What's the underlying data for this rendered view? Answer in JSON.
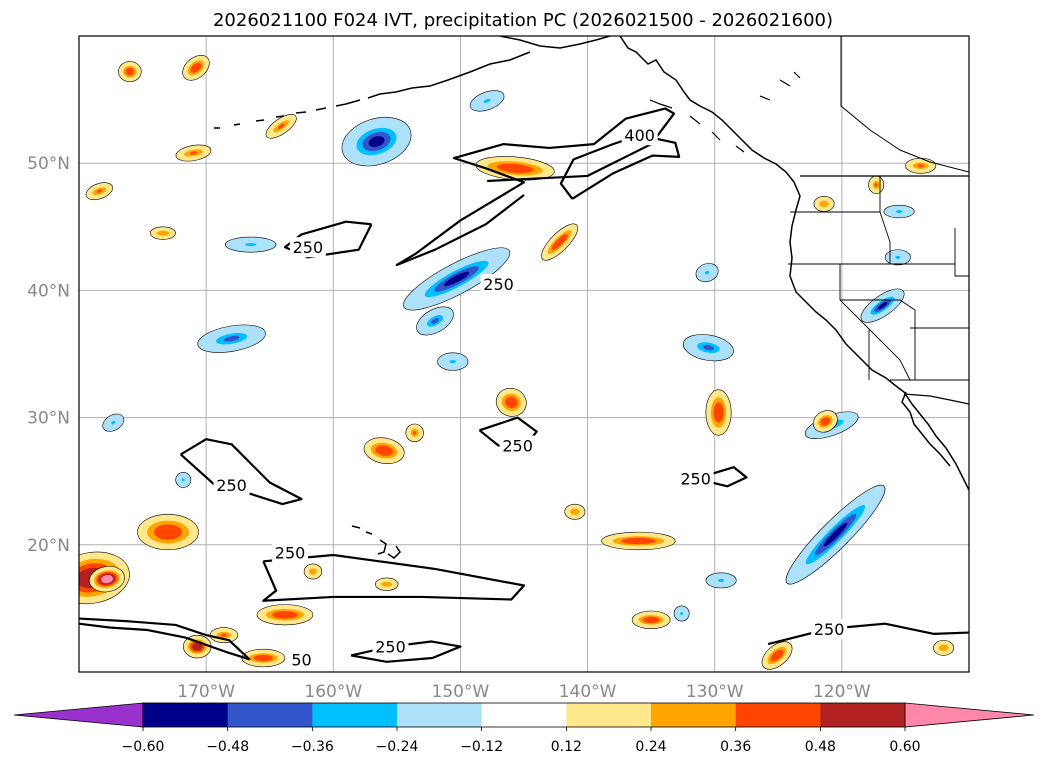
{
  "chart_data": {
    "type": "heatmap",
    "title": "2026021100 F024 IVT, precipitation PC (2026021500 - 2026021600)",
    "xlabel": "",
    "ylabel": "",
    "map": {
      "lon_range": [
        -180,
        -110
      ],
      "lat_range": [
        10,
        60
      ],
      "gridlines": true
    },
    "x_ticks": [
      {
        "value": -170,
        "label": "170°W"
      },
      {
        "value": -160,
        "label": "160°W"
      },
      {
        "value": -150,
        "label": "150°W"
      },
      {
        "value": -140,
        "label": "140°W"
      },
      {
        "value": -130,
        "label": "130°W"
      },
      {
        "value": -120,
        "label": "120°W"
      }
    ],
    "y_ticks": [
      {
        "value": 50,
        "label": "50°N"
      },
      {
        "value": 40,
        "label": "40°N"
      },
      {
        "value": 30,
        "label": "30°N"
      },
      {
        "value": 20,
        "label": "20°N"
      }
    ],
    "contour_labels": [
      {
        "text": "400",
        "lon": -135.9,
        "lat": 52.2
      },
      {
        "text": "250",
        "lon": -162.0,
        "lat": 43.4
      },
      {
        "text": "250",
        "lon": -147.0,
        "lat": 40.5
      },
      {
        "text": "250",
        "lon": -168.0,
        "lat": 24.7
      },
      {
        "text": "250",
        "lon": -145.5,
        "lat": 27.8
      },
      {
        "text": "250",
        "lon": -131.5,
        "lat": 25.2
      },
      {
        "text": "250",
        "lon": -163.4,
        "lat": 19.4
      },
      {
        "text": "250",
        "lon": -155.5,
        "lat": 12.0
      },
      {
        "text": "250",
        "lon": -121.0,
        "lat": 13.4
      },
      {
        "text": "50",
        "lon": -162.5,
        "lat": 11.0
      }
    ],
    "colorbar": {
      "levels": [
        -0.6,
        -0.48,
        -0.36,
        -0.24,
        -0.12,
        0.12,
        0.24,
        0.36,
        0.48,
        0.6
      ],
      "labels": [
        "−0.60",
        "−0.48",
        "−0.36",
        "−0.24",
        "−0.12",
        "0.12",
        "0.24",
        "0.36",
        "0.48",
        "0.60"
      ],
      "under_color": "#9932CC",
      "over_color": "#FF88AA",
      "colors": [
        "#00008B",
        "#3355CC",
        "#00BFFF",
        "#ADE1FA",
        "#FFFFFF",
        "#FFE88C",
        "#FFA500",
        "#FF4500",
        "#B22222"
      ],
      "extend": "both"
    },
    "precip_blobs": [
      {
        "lon": -156.6,
        "lat": 51.7,
        "rx": 2.6,
        "ry": 1.6,
        "rot": -18,
        "value": -0.55
      },
      {
        "lon": -150.3,
        "lat": 40.9,
        "rx": 4.5,
        "ry": 1.0,
        "rot": -28,
        "value": -0.55
      },
      {
        "lon": -152.0,
        "lat": 37.6,
        "rx": 1.4,
        "ry": 0.7,
        "rot": -30,
        "value": -0.4
      },
      {
        "lon": -168.0,
        "lat": 36.2,
        "rx": 2.5,
        "ry": 0.8,
        "rot": -10,
        "value": -0.4
      },
      {
        "lon": -130.5,
        "lat": 35.5,
        "rx": 1.8,
        "ry": 0.8,
        "rot": 10,
        "value": -0.4
      },
      {
        "lon": -120.8,
        "lat": 29.4,
        "rx": 2.0,
        "ry": 0.6,
        "rot": -20,
        "value": -0.4
      },
      {
        "lon": -120.5,
        "lat": 20.8,
        "rx": 5.2,
        "ry": 0.9,
        "rot": -45,
        "value": -0.55
      },
      {
        "lon": -147.9,
        "lat": 54.9,
        "rx": 1.2,
        "ry": 0.5,
        "rot": -20,
        "value": -0.3
      },
      {
        "lon": -166.5,
        "lat": 43.6,
        "rx": 1.8,
        "ry": 0.4,
        "rot": 0,
        "value": -0.3
      },
      {
        "lon": -150.6,
        "lat": 34.4,
        "rx": 1.0,
        "ry": 0.5,
        "rot": 0,
        "value": -0.3
      },
      {
        "lon": -177.3,
        "lat": 29.6,
        "rx": 0.7,
        "ry": 0.4,
        "rot": -30,
        "value": -0.3
      },
      {
        "lon": -171.8,
        "lat": 25.1,
        "rx": 0.4,
        "ry": 0.4,
        "rot": 0,
        "value": -0.3
      },
      {
        "lon": -129.5,
        "lat": 17.2,
        "rx": 1.0,
        "ry": 0.4,
        "rot": 0,
        "value": -0.3
      },
      {
        "lon": -132.6,
        "lat": 14.6,
        "rx": 0.4,
        "ry": 0.4,
        "rot": 0,
        "value": -0.3
      },
      {
        "lon": -130.6,
        "lat": 41.4,
        "rx": 0.7,
        "ry": 0.5,
        "rot": -20,
        "value": -0.3
      },
      {
        "lon": -115.6,
        "lat": 42.6,
        "rx": 0.8,
        "ry": 0.4,
        "rot": 0,
        "value": -0.3
      },
      {
        "lon": -115.5,
        "lat": 46.2,
        "rx": 1.0,
        "ry": 0.3,
        "rot": 0,
        "value": -0.3
      },
      {
        "lon": -116.8,
        "lat": 38.8,
        "rx": 1.8,
        "ry": 0.6,
        "rot": -35,
        "value": -0.5
      },
      {
        "lon": -145.7,
        "lat": 49.6,
        "rx": 2.9,
        "ry": 0.7,
        "rot": 5,
        "value": 0.42
      },
      {
        "lon": -142.2,
        "lat": 43.8,
        "rx": 1.7,
        "ry": 0.5,
        "rot": -45,
        "value": 0.4
      },
      {
        "lon": -170.8,
        "lat": 57.5,
        "rx": 1.0,
        "ry": 0.6,
        "rot": -40,
        "value": 0.4
      },
      {
        "lon": -176.0,
        "lat": 57.2,
        "rx": 0.7,
        "ry": 0.6,
        "rot": 0,
        "value": 0.38
      },
      {
        "lon": -171.0,
        "lat": 50.8,
        "rx": 1.2,
        "ry": 0.4,
        "rot": -10,
        "value": 0.36
      },
      {
        "lon": -178.4,
        "lat": 47.8,
        "rx": 0.9,
        "ry": 0.4,
        "rot": -20,
        "value": 0.36
      },
      {
        "lon": -164.1,
        "lat": 52.9,
        "rx": 1.2,
        "ry": 0.4,
        "rot": -35,
        "value": 0.36
      },
      {
        "lon": -173.4,
        "lat": 44.5,
        "rx": 0.8,
        "ry": 0.3,
        "rot": 0,
        "value": 0.3
      },
      {
        "lon": -156.0,
        "lat": 27.4,
        "rx": 1.4,
        "ry": 0.8,
        "rot": 10,
        "value": 0.45
      },
      {
        "lon": -153.6,
        "lat": 28.8,
        "rx": 0.5,
        "ry": 0.5,
        "rot": 0,
        "value": 0.36
      },
      {
        "lon": -146.0,
        "lat": 31.2,
        "rx": 1.0,
        "ry": 0.9,
        "rot": 20,
        "value": 0.38
      },
      {
        "lon": -129.7,
        "lat": 30.4,
        "rx": 0.8,
        "ry": 1.6,
        "rot": 0,
        "value": 0.4
      },
      {
        "lon": -121.3,
        "lat": 29.7,
        "rx": 0.8,
        "ry": 0.6,
        "rot": -30,
        "value": 0.4
      },
      {
        "lon": -173.0,
        "lat": 21.0,
        "rx": 2.2,
        "ry": 1.2,
        "rot": 0,
        "value": 0.38
      },
      {
        "lon": -179.0,
        "lat": 17.4,
        "rx": 2.8,
        "ry": 1.8,
        "rot": -10,
        "value": 0.55
      },
      {
        "lon": -177.8,
        "lat": 17.3,
        "rx": 1.2,
        "ry": 0.8,
        "rot": -10,
        "value": 0.7
      },
      {
        "lon": -163.8,
        "lat": 14.5,
        "rx": 2.0,
        "ry": 0.6,
        "rot": 0,
        "value": 0.38
      },
      {
        "lon": -165.5,
        "lat": 11.1,
        "rx": 1.5,
        "ry": 0.5,
        "rot": 0,
        "value": 0.4
      },
      {
        "lon": -170.7,
        "lat": 12.0,
        "rx": 0.9,
        "ry": 0.7,
        "rot": 0,
        "value": 0.52
      },
      {
        "lon": -168.6,
        "lat": 12.9,
        "rx": 0.9,
        "ry": 0.4,
        "rot": 0,
        "value": 0.36
      },
      {
        "lon": -136.0,
        "lat": 20.3,
        "rx": 2.7,
        "ry": 0.5,
        "rot": 0,
        "value": 0.38
      },
      {
        "lon": -135.0,
        "lat": 14.1,
        "rx": 1.3,
        "ry": 0.5,
        "rot": 0,
        "value": 0.38
      },
      {
        "lon": -125.1,
        "lat": 11.3,
        "rx": 1.2,
        "ry": 0.6,
        "rot": -40,
        "value": 0.42
      },
      {
        "lon": -155.8,
        "lat": 16.9,
        "rx": 0.7,
        "ry": 0.3,
        "rot": 0,
        "value": 0.32
      },
      {
        "lon": -161.6,
        "lat": 17.9,
        "rx": 0.5,
        "ry": 0.4,
        "rot": 0,
        "value": 0.32
      },
      {
        "lon": -141.0,
        "lat": 22.6,
        "rx": 0.6,
        "ry": 0.4,
        "rot": 0,
        "value": 0.32
      },
      {
        "lon": -121.4,
        "lat": 46.8,
        "rx": 0.6,
        "ry": 0.4,
        "rot": 0,
        "value": 0.34
      },
      {
        "lon": -113.8,
        "lat": 49.8,
        "rx": 1.0,
        "ry": 0.4,
        "rot": 0,
        "value": 0.36
      },
      {
        "lon": -112.0,
        "lat": 11.9,
        "rx": 0.6,
        "ry": 0.4,
        "rot": 0,
        "value": 0.34
      },
      {
        "lon": -117.3,
        "lat": 48.3,
        "rx": 0.4,
        "ry": 0.5,
        "rot": 0,
        "value": 0.36
      }
    ],
    "ivt_contours": [
      {
        "level": 250,
        "points": [
          [
            -147.9,
            48.6
          ],
          [
            -140.0,
            49.0
          ],
          [
            -135.0,
            51.5
          ],
          [
            -133.2,
            53.9
          ],
          [
            -133.9,
            54.3
          ],
          [
            -137.0,
            53.5
          ],
          [
            -139.5,
            51.5
          ],
          [
            -143.0,
            51.2
          ],
          [
            -146.6,
            51.5
          ],
          [
            -150.5,
            50.4
          ],
          [
            -148.0,
            49.6
          ],
          [
            -145.0,
            48.5
          ],
          [
            -150.0,
            45.5
          ],
          [
            -153.5,
            42.9
          ],
          [
            -155.0,
            42.0
          ],
          [
            -152.0,
            43.2
          ],
          [
            -148.0,
            45.2
          ],
          [
            -145.0,
            47.5
          ]
        ]
      },
      {
        "level": 400,
        "points": [
          [
            -141.2,
            47.2
          ],
          [
            -138.0,
            49.2
          ],
          [
            -134.9,
            50.6
          ],
          [
            -132.8,
            50.5
          ],
          [
            -133.1,
            51.6
          ],
          [
            -135.9,
            52.2
          ],
          [
            -138.0,
            51.5
          ],
          [
            -141.1,
            50.3
          ],
          [
            -142.1,
            48.4
          ],
          [
            -141.2,
            47.2
          ]
        ]
      },
      {
        "level": 250,
        "points": [
          [
            -157.0,
            45.2
          ],
          [
            -159.0,
            45.4
          ],
          [
            -162.5,
            44.4
          ],
          [
            -163.8,
            43.4
          ],
          [
            -162.0,
            42.6
          ],
          [
            -158.0,
            43.2
          ],
          [
            -157.0,
            45.2
          ]
        ]
      },
      {
        "level": 250,
        "points": [
          [
            -172.0,
            27.1
          ],
          [
            -170.0,
            28.3
          ],
          [
            -168.0,
            27.9
          ],
          [
            -165.0,
            24.9
          ],
          [
            -162.5,
            23.6
          ],
          [
            -164.0,
            23.2
          ],
          [
            -166.5,
            24.0
          ],
          [
            -169.2,
            24.6
          ],
          [
            -172.0,
            27.1
          ]
        ]
      },
      {
        "level": 250,
        "points": [
          [
            -148.5,
            29.0
          ],
          [
            -145.5,
            30.0
          ],
          [
            -144.0,
            28.9
          ],
          [
            -144.8,
            27.9
          ],
          [
            -147.0,
            27.8
          ],
          [
            -148.5,
            29.0
          ]
        ]
      },
      {
        "level": 250,
        "points": [
          [
            -131.5,
            25.2
          ],
          [
            -128.5,
            26.1
          ],
          [
            -127.5,
            25.3
          ],
          [
            -129.0,
            24.6
          ],
          [
            -131.5,
            25.2
          ]
        ]
      },
      {
        "level": 250,
        "points": [
          [
            -165.5,
            18.7
          ],
          [
            -160.0,
            19.2
          ],
          [
            -152.0,
            18.1
          ],
          [
            -145.0,
            16.8
          ],
          [
            -146.0,
            15.7
          ],
          [
            -153.0,
            15.9
          ],
          [
            -160.0,
            15.9
          ],
          [
            -165.5,
            15.6
          ],
          [
            -164.5,
            16.4
          ],
          [
            -165.5,
            18.7
          ]
        ]
      },
      {
        "level": 250,
        "points": [
          [
            -180.0,
            14.2
          ],
          [
            -176.3,
            14.0
          ],
          [
            -172.4,
            13.7
          ],
          [
            -170.0,
            12.9
          ],
          [
            -168.2,
            12.5
          ],
          [
            -166.6,
            11.0
          ],
          [
            -168.5,
            11.6
          ],
          [
            -171.6,
            12.7
          ],
          [
            -174.6,
            13.3
          ],
          [
            -177.6,
            13.5
          ],
          [
            -180.0,
            13.8
          ]
        ]
      },
      {
        "level": 250,
        "points": [
          [
            -158.6,
            11.3
          ],
          [
            -155.5,
            12.0
          ],
          [
            -152.3,
            12.4
          ],
          [
            -150.0,
            12.0
          ],
          [
            -152.2,
            11.1
          ],
          [
            -155.8,
            10.8
          ],
          [
            -158.6,
            11.3
          ]
        ]
      },
      {
        "level": 250,
        "points": [
          [
            -125.8,
            12.2
          ],
          [
            -121.0,
            13.4
          ],
          [
            -116.6,
            13.8
          ],
          [
            -112.8,
            13.0
          ],
          [
            -110.0,
            13.1
          ]
        ]
      }
    ]
  }
}
